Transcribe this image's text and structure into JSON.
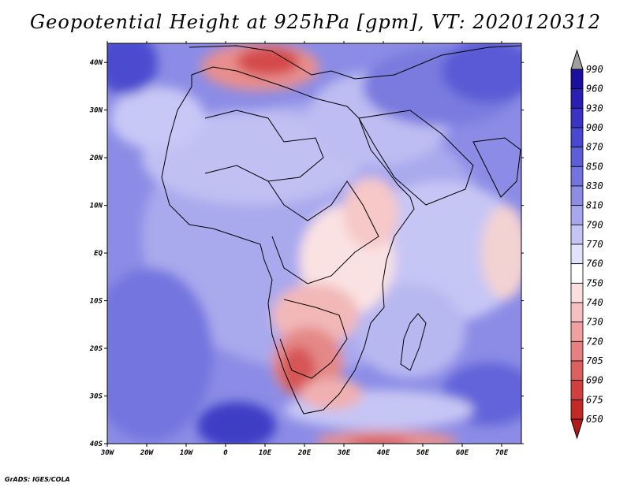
{
  "title": "Geopotential Height at 925hPa [gpm], VT: 2020120312",
  "credit": "GrADS: IGES/COLA",
  "map": {
    "lon_ticks": [
      "30W",
      "20W",
      "10W",
      "0",
      "10E",
      "20E",
      "30E",
      "40E",
      "50E",
      "60E",
      "70E"
    ],
    "lat_ticks": [
      "40N",
      "30N",
      "20N",
      "10N",
      "EQ",
      "10S",
      "20S",
      "30S",
      "40S"
    ],
    "lon_range": [
      -30,
      75
    ],
    "lat_range": [
      -40,
      44
    ]
  },
  "colorbar": {
    "levels": [
      "990",
      "960",
      "930",
      "900",
      "870",
      "850",
      "830",
      "810",
      "790",
      "770",
      "760",
      "750",
      "740",
      "730",
      "720",
      "705",
      "690",
      "675",
      "650"
    ],
    "colors": [
      "#a0a0a0",
      "#1a0f9e",
      "#2b1fb3",
      "#3a33c4",
      "#4a48d0",
      "#5e5ed8",
      "#7474df",
      "#8d8de6",
      "#a7a7ee",
      "#c4c4f5",
      "#e2e2fb",
      "#ffffff",
      "#fbdede",
      "#f7c0c0",
      "#f0a0a0",
      "#e78080",
      "#dd6060",
      "#d04040",
      "#c22a2a",
      "#b01a1a"
    ]
  }
}
